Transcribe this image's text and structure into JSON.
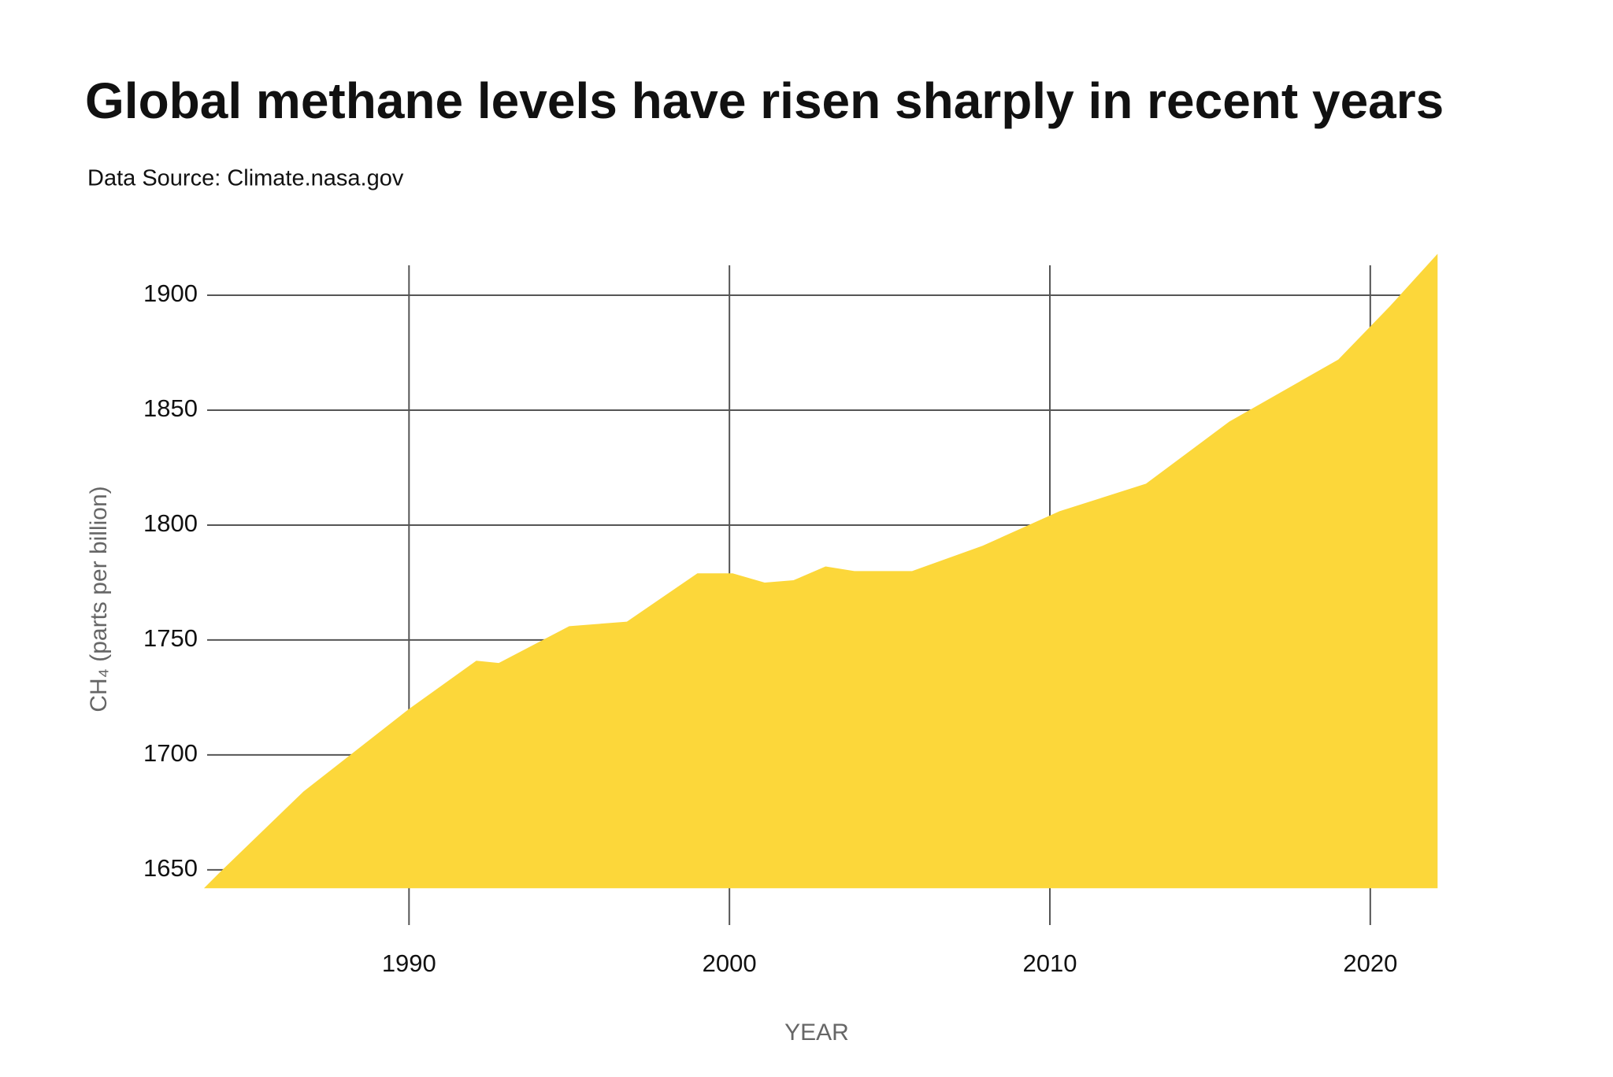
{
  "chart_data": {
    "type": "area",
    "title": "Global methane levels have risen sharply in recent years",
    "subtitle": "Data Source: Climate.nasa.gov",
    "x_label": "YEAR",
    "y_label": "CH₄ (parts per billion)",
    "x": [
      1983.6,
      1984.1,
      1986.7,
      1990,
      1992.1,
      1992.8,
      1995,
      1996.8,
      1999,
      2000.1,
      2001.1,
      2002,
      2003,
      2003.9,
      2005.7,
      2007.9,
      2010.3,
      2013,
      2015.6,
      2019,
      2020.6,
      2022.1
    ],
    "series": [
      {
        "name": "CH₄",
        "color": "#fcd73a",
        "values": [
          1642,
          1649,
          1684,
          1720,
          1741,
          1740,
          1756,
          1758,
          1779,
          1779,
          1775,
          1776,
          1782,
          1780,
          1780,
          1791,
          1806,
          1818,
          1845,
          1872,
          1895,
          1918
        ]
      }
    ],
    "baseline": 1642,
    "xlim": [
      1983.7,
      2021.7
    ],
    "xticks": [
      1990,
      2000,
      2010,
      2020
    ],
    "ylim": [
      1626,
      1913
    ],
    "yticks": [
      1650,
      1700,
      1750,
      1800,
      1850,
      1900
    ],
    "grid": true
  }
}
